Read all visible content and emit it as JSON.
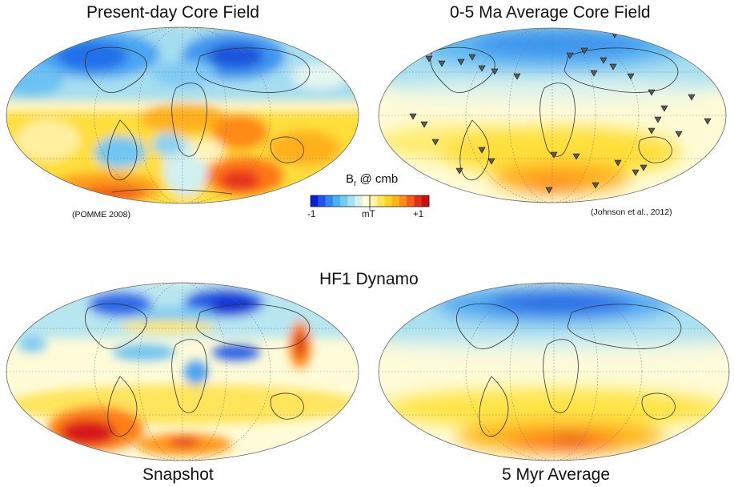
{
  "titles": {
    "present_day": "Present-day Core Field",
    "average_0_5": "0-5 Ma Average Core Field",
    "dynamo": "HF1 Dynamo",
    "snapshot": "Snapshot",
    "avg_5myr": "5 Myr Average"
  },
  "citations": {
    "pomme": "(POMME 2008)",
    "johnson": "(Johnson et al., 2012)"
  },
  "colorbar": {
    "title_main": "B",
    "title_sub": "r",
    "title_rest": " @ cmb",
    "min_label": "-1",
    "unit_label": "mT",
    "max_label": "+1",
    "colors": [
      "#0a1fd6",
      "#1f55ee",
      "#2f86f5",
      "#47b0f6",
      "#6fcdf3",
      "#a5e2f1",
      "#d7f1ee",
      "#ffffdc",
      "#fff3a3",
      "#ffe45a",
      "#ffd21e",
      "#ffb319",
      "#ff8c17",
      "#f85d17",
      "#e32d18",
      "#c80f14"
    ]
  },
  "palette": {
    "deep_blue": "#1733d8",
    "mid_blue": "#3a8ff0",
    "light_blue": "#aee3f0",
    "pale": "#fffbd8",
    "yellow": "#ffe233",
    "orange": "#ff9a1e",
    "red": "#d8151a",
    "site_marker": "#555555"
  }
}
